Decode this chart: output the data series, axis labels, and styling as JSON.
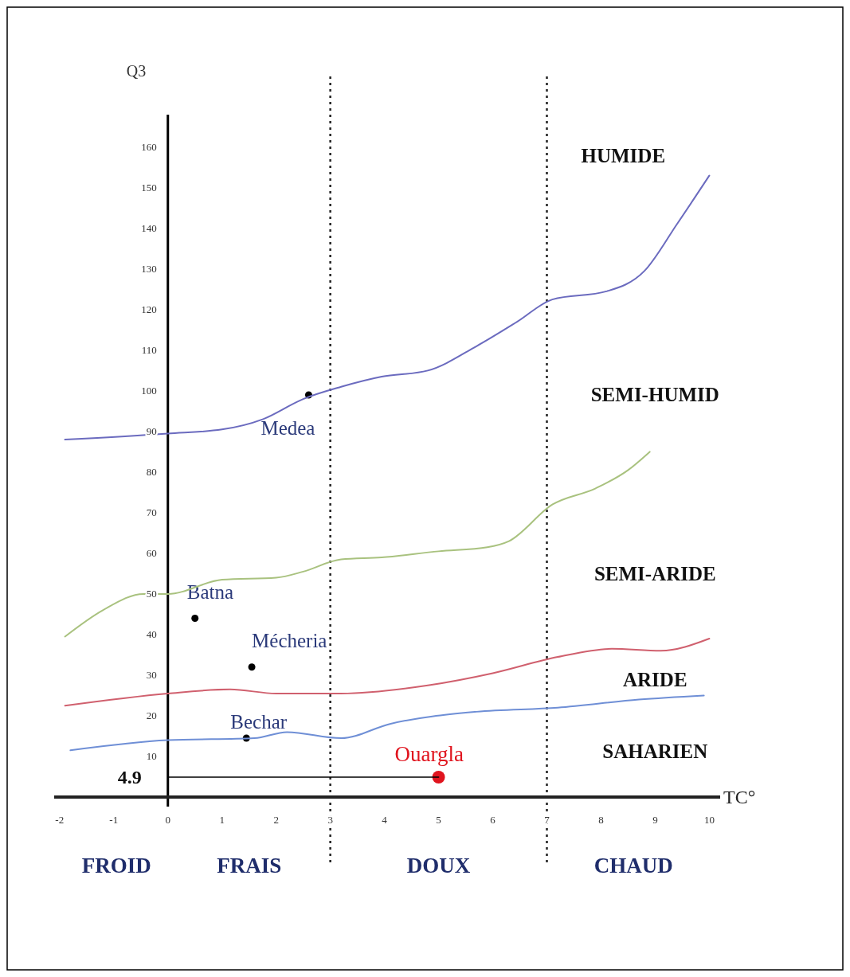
{
  "chart_data": {
    "type": "line",
    "xlabel": "TC°",
    "ylabel": "Q3",
    "xlim": [
      -2.1,
      10.2
    ],
    "ylim": [
      0,
      168
    ],
    "xticks": [
      -2,
      -1,
      0,
      1,
      2,
      3,
      4,
      5,
      6,
      7,
      8,
      9,
      10
    ],
    "yticks": [
      10,
      20,
      30,
      40,
      50,
      60,
      70,
      80,
      90,
      100,
      110,
      120,
      130,
      140,
      150,
      160
    ],
    "grid": false,
    "series": [
      {
        "color": "#6b6bbf",
        "x": [
          -1.9,
          0,
          1,
          1.75,
          2.5,
          3.2,
          3.95,
          4.8,
          5.7,
          6.45,
          7.1,
          8.1,
          8.8,
          9.4,
          10
        ],
        "values": [
          88,
          89.5,
          90.5,
          93,
          98,
          101,
          103.5,
          105,
          111,
          117,
          122.5,
          124.5,
          129.5,
          141,
          153
        ]
      },
      {
        "color": "#a9c27f",
        "x": [
          -1.9,
          -1.2,
          -0.45,
          0,
          1,
          2,
          2.5,
          3.2,
          3.95,
          5,
          5.9,
          6.3,
          7.1,
          7.9,
          8.5,
          8.9
        ],
        "values": [
          39.5,
          46,
          50,
          50,
          53.5,
          54,
          55.5,
          58.5,
          59,
          60.5,
          61.5,
          63,
          72,
          76,
          80.5,
          85
        ]
      },
      {
        "color": "#d0606e",
        "x": [
          -1.9,
          0,
          1.15,
          2,
          3.2,
          4.8,
          6,
          7.2,
          8.2,
          9.1,
          10
        ],
        "values": [
          22.5,
          25.5,
          26.5,
          25.5,
          25.5,
          27.5,
          30.5,
          34.5,
          36.5,
          36,
          39
        ]
      },
      {
        "color": "#6f8fd6",
        "x": [
          -1.8,
          0,
          1.6,
          2.2,
          3.2,
          4.1,
          5.7,
          7.2,
          8.7,
          9.9
        ],
        "values": [
          11.5,
          14,
          14.5,
          16,
          14.5,
          18,
          21,
          22,
          24,
          25
        ]
      },
      {
        "color": "#000000",
        "x": [
          0,
          5
        ],
        "values": [
          4.9,
          4.9
        ]
      },
      {
        "type": "scatter",
        "name": "Medea",
        "color": "#000000",
        "x": [
          2.6
        ],
        "values": [
          99
        ]
      },
      {
        "type": "scatter",
        "name": "Batna",
        "color": "#000000",
        "x": [
          0.5
        ],
        "values": [
          44
        ]
      },
      {
        "type": "scatter",
        "name": "Mécheria",
        "color": "#000000",
        "x": [
          1.55
        ],
        "values": [
          32
        ]
      },
      {
        "type": "scatter",
        "name": "Bechar",
        "color": "#000000",
        "x": [
          1.45
        ],
        "values": [
          14.5
        ]
      },
      {
        "type": "scatter",
        "name": "Ouargla",
        "color": "#e0141e",
        "x": [
          5
        ],
        "values": [
          4.9
        ]
      }
    ],
    "ref_lines": [
      {
        "axis": "x",
        "value": 3,
        "color": "#222222",
        "line_style": "dotted"
      },
      {
        "axis": "x",
        "value": 7,
        "color": "#222222",
        "line_style": "dotted"
      }
    ],
    "annotations": [
      "FROID",
      "FRAIS",
      "DOUX",
      "CHAUD",
      "HUMIDE",
      "SEMI-HUMID",
      "SEMI-ARIDE",
      "ARIDE",
      "SAHARIEN",
      {
        "text": "4.9",
        "x": 0,
        "y": 4.9
      }
    ]
  }
}
